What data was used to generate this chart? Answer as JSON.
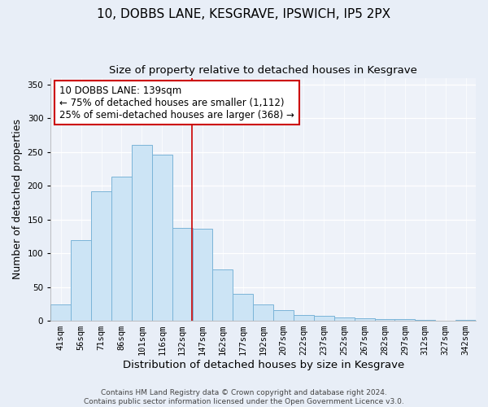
{
  "title": "10, DOBBS LANE, KESGRAVE, IPSWICH, IP5 2PX",
  "subtitle": "Size of property relative to detached houses in Kesgrave",
  "xlabel": "Distribution of detached houses by size in Kesgrave",
  "ylabel": "Number of detached properties",
  "categories": [
    "41sqm",
    "56sqm",
    "71sqm",
    "86sqm",
    "101sqm",
    "116sqm",
    "132sqm",
    "147sqm",
    "162sqm",
    "177sqm",
    "192sqm",
    "207sqm",
    "222sqm",
    "237sqm",
    "252sqm",
    "267sqm",
    "282sqm",
    "297sqm",
    "312sqm",
    "327sqm",
    "342sqm"
  ],
  "bar_values": [
    24,
    120,
    192,
    213,
    261,
    246,
    138,
    136,
    76,
    40,
    24,
    16,
    8,
    7,
    5,
    4,
    3,
    2,
    1,
    0,
    1
  ],
  "bar_color": "#cce4f5",
  "bar_edge_color": "#7ab4d8",
  "vline_x_index": 6.47,
  "vline_color": "#cc0000",
  "annotation_box_text": "10 DOBBS LANE: 139sqm\n← 75% of detached houses are smaller (1,112)\n25% of semi-detached houses are larger (368) →",
  "annotation_box_color": "#ffffff",
  "annotation_box_edge_color": "#cc0000",
  "ylim": [
    0,
    360
  ],
  "yticks": [
    0,
    50,
    100,
    150,
    200,
    250,
    300,
    350
  ],
  "bg_color": "#e8eef7",
  "plot_bg_color": "#eef2f9",
  "grid_color": "#ffffff",
  "footer_text": "Contains HM Land Registry data © Crown copyright and database right 2024.\nContains public sector information licensed under the Open Government Licence v3.0.",
  "title_fontsize": 11,
  "subtitle_fontsize": 9.5,
  "annot_fontsize": 8.5,
  "tick_fontsize": 7.5,
  "ylabel_fontsize": 9,
  "xlabel_fontsize": 9.5,
  "footer_fontsize": 6.5
}
